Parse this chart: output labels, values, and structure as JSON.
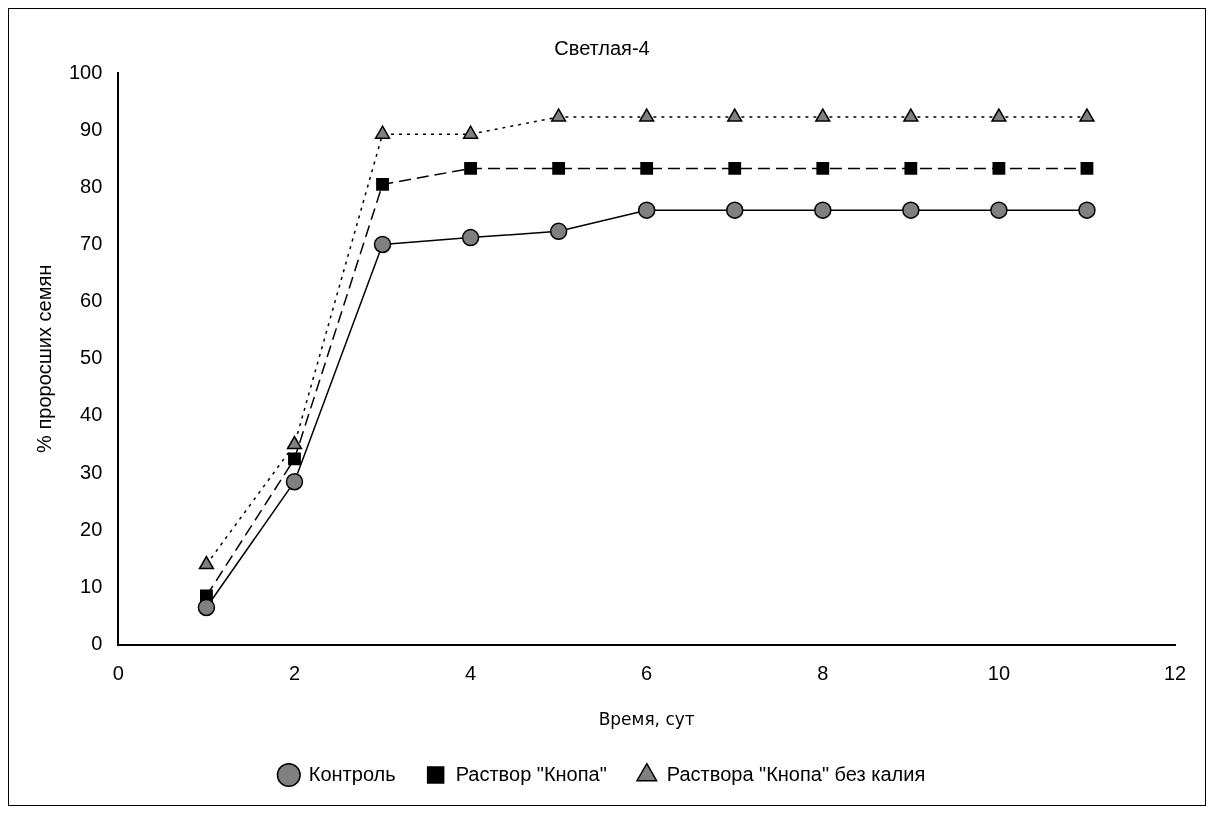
{
  "chart_data": {
    "type": "line",
    "title": "Светлая-4",
    "xlabel": "Время, сут",
    "ylabel": "% проросших семян",
    "x": [
      1,
      2,
      3,
      4,
      5,
      6,
      7,
      8,
      9,
      10,
      11
    ],
    "xlim": [
      0,
      12
    ],
    "xticks": [
      0,
      2,
      4,
      6,
      8,
      10,
      12
    ],
    "ylim": [
      0,
      100
    ],
    "yticks": [
      0,
      10,
      20,
      30,
      40,
      50,
      60,
      70,
      80,
      90,
      100
    ],
    "grid": false,
    "legend": "bottom",
    "series": [
      {
        "name": "Контроль",
        "color": "#808080",
        "marker": "circle",
        "line_style": "solid",
        "values": [
          6.5,
          28.5,
          70,
          71.2,
          72.3,
          76,
          76,
          76,
          76,
          76,
          76
        ]
      },
      {
        "name": "Раствор \"Кнопа\"",
        "color": "#000000",
        "marker": "square",
        "line_style": "dashed",
        "values": [
          8.5,
          32.5,
          80.5,
          83.3,
          83.3,
          83.3,
          83.3,
          83.3,
          83.3,
          83.3,
          83.3
        ]
      },
      {
        "name": "Раствора \"Кнопа\" без калия",
        "color": "#808080",
        "marker": "triangle",
        "line_style": "dotted",
        "values": [
          14,
          35,
          89.3,
          89.3,
          92.3,
          92.3,
          92.3,
          92.3,
          92.3,
          92.3,
          92.3
        ]
      }
    ]
  }
}
